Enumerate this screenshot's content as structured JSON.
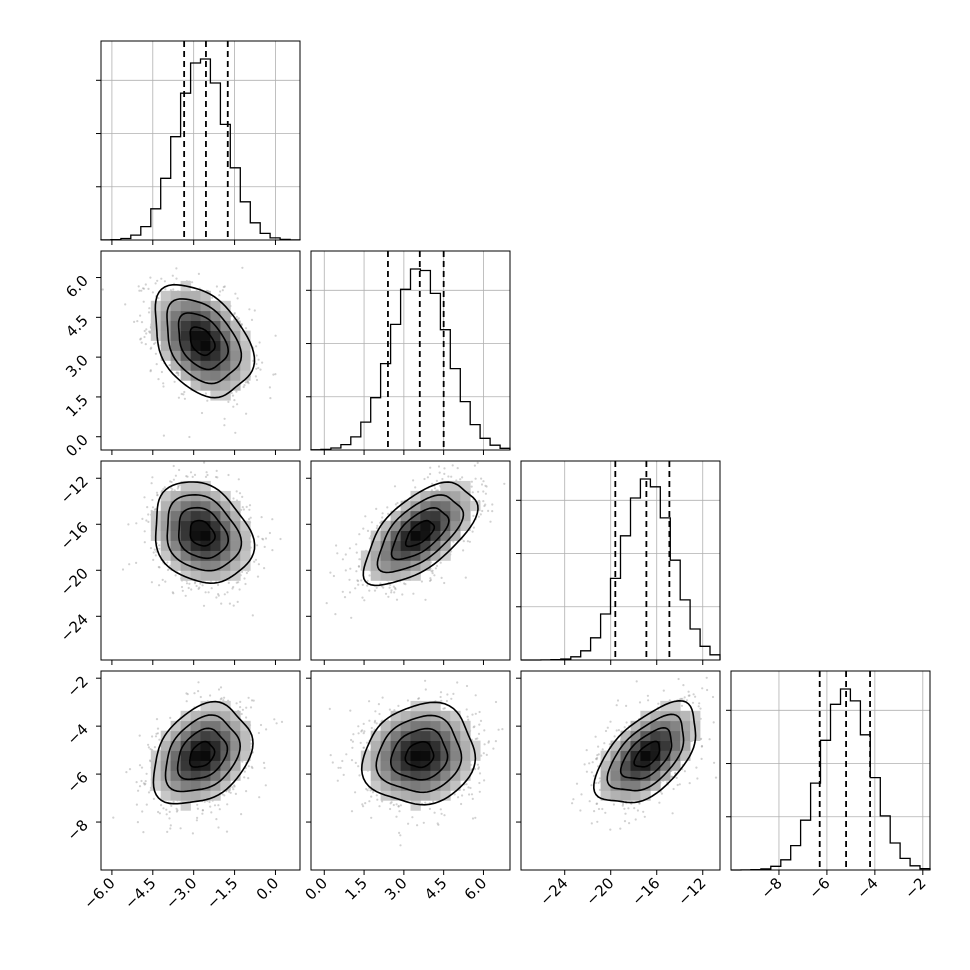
{
  "chart_data": {
    "type": "corner",
    "parameters": [
      {
        "mean": -2.7,
        "sigma": 0.9,
        "range": [
          -6.4,
          0.9
        ],
        "ticks": [
          -6.0,
          -4.5,
          -3.0,
          -1.5,
          0.0
        ],
        "tick_labels": [
          "−6.0",
          "−4.5",
          "−3.0",
          "−1.5",
          "0.0"
        ],
        "quantiles": [
          -3.35,
          -2.55,
          -1.75
        ]
      },
      {
        "mean": 3.6,
        "sigma": 1.05,
        "range": [
          -0.5,
          7.0
        ],
        "ticks": [
          0.0,
          1.5,
          3.0,
          4.5,
          6.0
        ],
        "tick_labels": [
          "0.0",
          "1.5",
          "3.0",
          "4.5",
          "6.0"
        ],
        "quantiles": [
          2.4,
          3.6,
          4.5
        ]
      },
      {
        "mean": -16.8,
        "sigma": 2.2,
        "range": [
          -27.8,
          -10.5
        ],
        "ticks": [
          -24,
          -20,
          -16,
          -12
        ],
        "tick_labels": [
          "−24",
          "−20",
          "−16",
          "−12"
        ],
        "quantiles": [
          -19.6,
          -16.9,
          -14.9
        ]
      },
      {
        "mean": -5.2,
        "sigma": 1.05,
        "range": [
          -10.0,
          -1.7
        ],
        "ticks": [
          -8,
          -6,
          -4,
          -2
        ],
        "tick_labels": [
          "−8",
          "−6",
          "−4",
          "−2"
        ],
        "quantiles": [
          -6.3,
          -5.2,
          -4.2
        ]
      }
    ],
    "correlations": {
      "0-1": -0.35,
      "0-2": -0.2,
      "0-3": 0.3,
      "1-2": 0.6,
      "1-3": 0.1,
      "2-3": 0.55
    },
    "histogram_bins": 20,
    "contour_levels": [
      "0.5σ",
      "1σ",
      "1.5σ",
      "2σ"
    ],
    "grid": true,
    "title": "",
    "axis_labels": []
  }
}
